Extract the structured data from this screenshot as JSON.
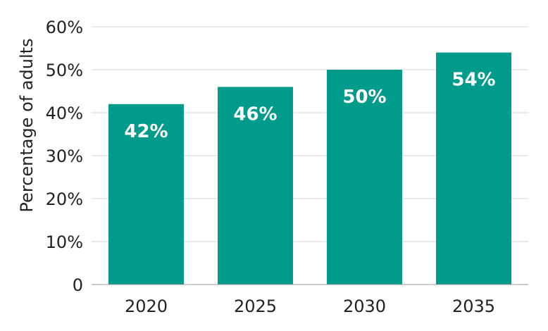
{
  "chart_data": {
    "type": "bar",
    "categories": [
      "2020",
      "2025",
      "2030",
      "2035"
    ],
    "values": [
      42,
      46,
      50,
      54
    ],
    "value_labels": [
      "42%",
      "46%",
      "50%",
      "54%"
    ],
    "ylabel": "Percentage of adults",
    "ylim": [
      0,
      60
    ],
    "yticks": [
      0,
      10,
      20,
      30,
      40,
      50,
      60
    ],
    "ytick_labels": [
      "0",
      "10%",
      "20%",
      "30%",
      "40%",
      "50%",
      "60%"
    ],
    "grid": true,
    "bar_color": "#009b8a",
    "label_color": "#ffffff"
  }
}
